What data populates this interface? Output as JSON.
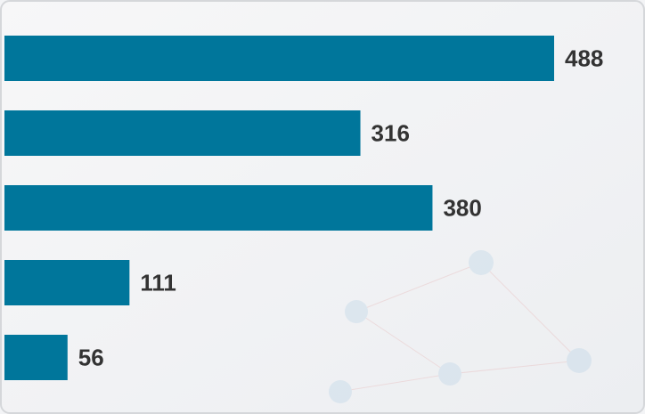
{
  "chart_data": {
    "type": "bar",
    "orientation": "horizontal",
    "values": [
      488,
      316,
      380,
      111,
      56
    ],
    "color": "#00769b"
  }
}
